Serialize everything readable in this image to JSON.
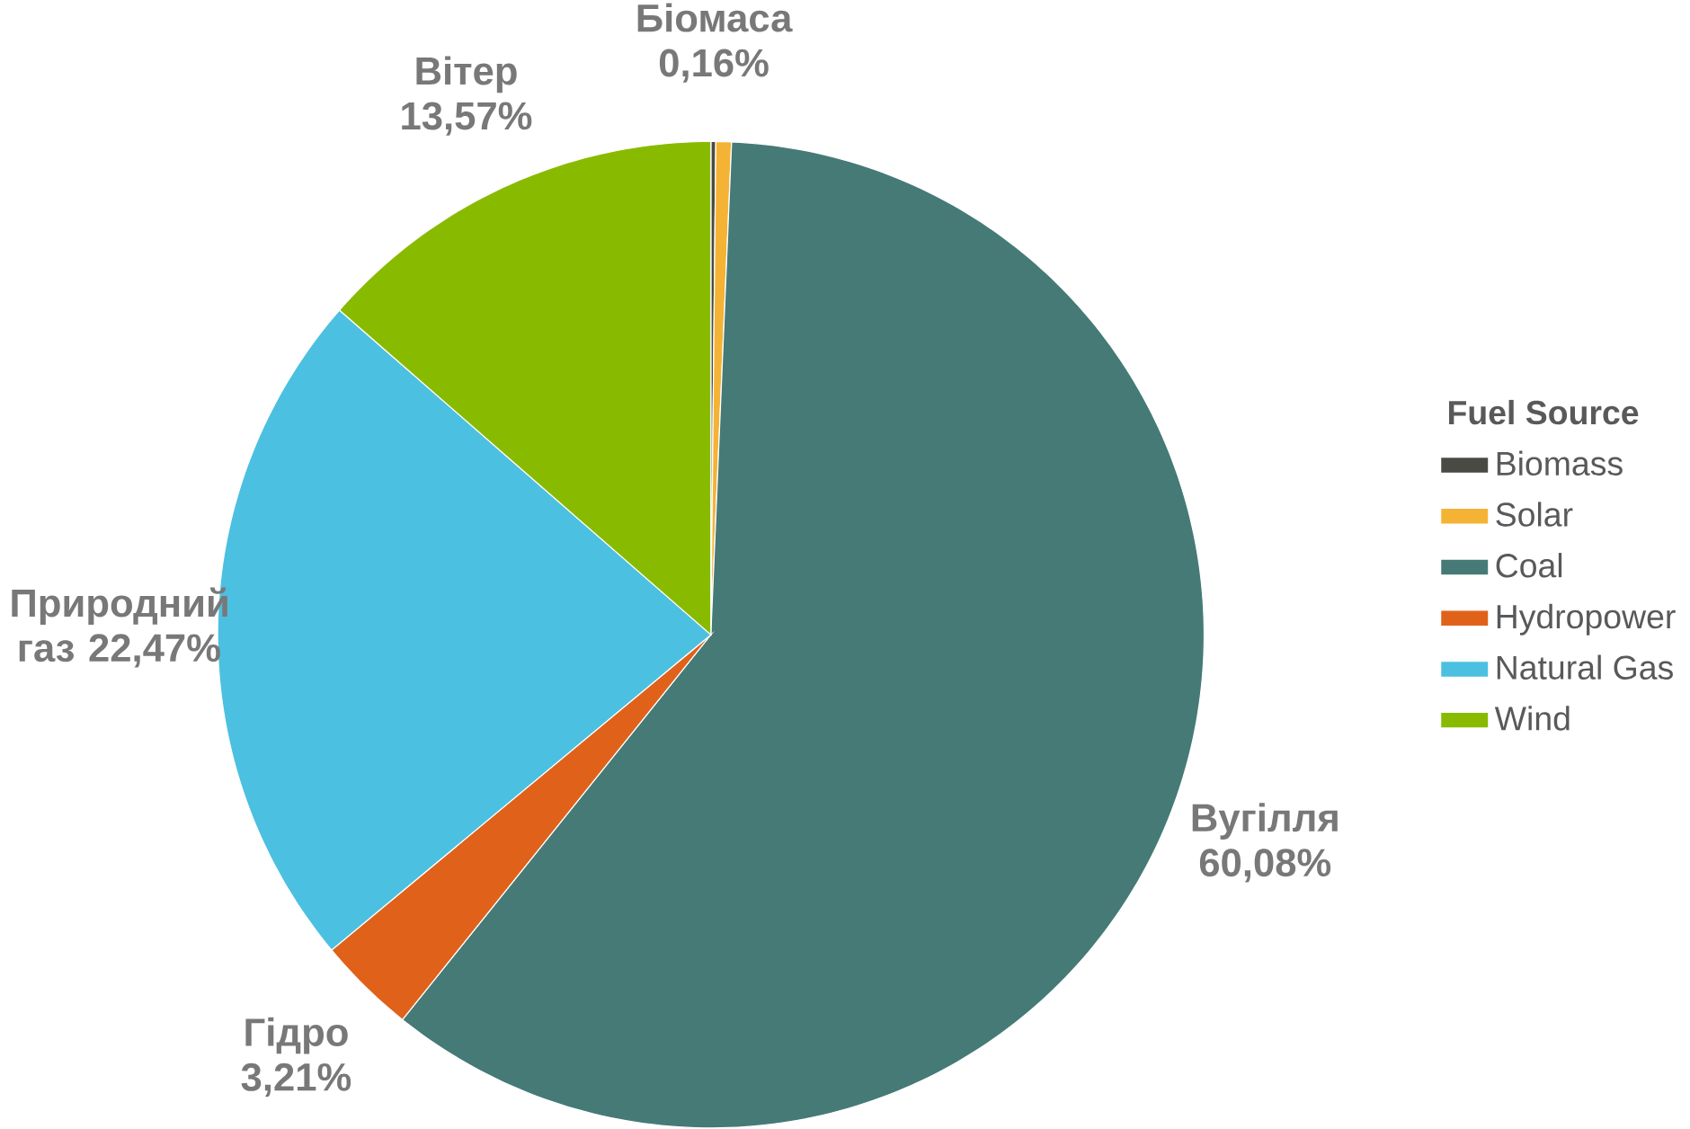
{
  "chart_data": {
    "type": "pie",
    "legend_title": "Fuel Source",
    "legend": "right",
    "categories": [
      "Biomass",
      "Solar",
      "Coal",
      "Hydropower",
      "Natural Gas",
      "Wind"
    ],
    "values": [
      0.16,
      0.51,
      60.08,
      3.21,
      22.47,
      13.57
    ],
    "colors": [
      "#4a4a44",
      "#f5b335",
      "#457a77",
      "#e0621a",
      "#4cc0e0",
      "#88bb00"
    ],
    "value_labels": [
      "Біомаса 0,16%",
      null,
      "Вугілля 60,08%",
      "Гідро 3,21%",
      "Природний газ 22,47%",
      "Вітер 13,57%"
    ]
  }
}
